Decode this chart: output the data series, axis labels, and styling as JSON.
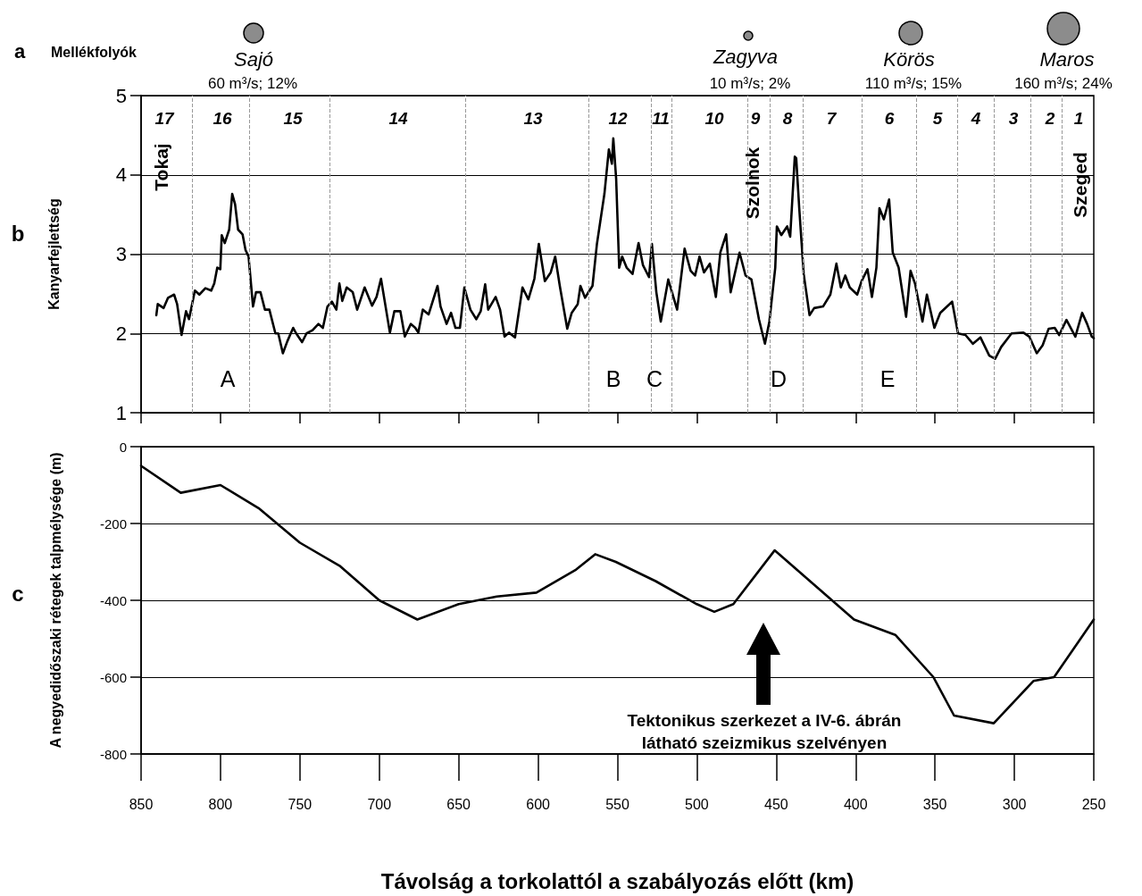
{
  "chart_data": [
    {
      "type": "other",
      "title": "Mellékfolyók",
      "annotations": [
        "a",
        "Sajó",
        "60 m³/s; 12%",
        "Zagyva",
        "10 m³/s; 2%",
        "Körös",
        "110 m³/s; 15%",
        "Maros",
        "160 m³/s; 24%"
      ]
    },
    {
      "type": "line",
      "ylabel": "Kanyarfejlettség",
      "marker": "none",
      "grid": "y",
      "tick_labels": "y",
      "xlim": [
        850,
        250
      ],
      "xticks": [
        850,
        800,
        750,
        700,
        650,
        600,
        550,
        500,
        450,
        400,
        350,
        300,
        250
      ],
      "ylim": [
        1,
        5
      ],
      "yticks": [
        1,
        2,
        3,
        4,
        5
      ],
      "ref_lines": [
        {
          "axis": "x",
          "value": 818,
          "label": null,
          "color": "#999999",
          "line_style": "dashed"
        },
        {
          "axis": "x",
          "value": 782,
          "label": null,
          "color": "#999999",
          "line_style": "dashed"
        },
        {
          "axis": "x",
          "value": 731,
          "label": null,
          "color": "#999999",
          "line_style": "dashed"
        },
        {
          "axis": "x",
          "value": 646,
          "label": null,
          "color": "#999999",
          "line_style": "dashed"
        },
        {
          "axis": "x",
          "value": 568,
          "label": null,
          "color": "#999999",
          "line_style": "dashed"
        },
        {
          "axis": "x",
          "value": 529,
          "label": null,
          "color": "#999999",
          "line_style": "dashed"
        },
        {
          "axis": "x",
          "value": 516,
          "label": null,
          "color": "#999999",
          "line_style": "dashed"
        },
        {
          "axis": "x",
          "value": 468,
          "label": null,
          "color": "#999999",
          "line_style": "dashed"
        },
        {
          "axis": "x",
          "value": 454,
          "label": null,
          "color": "#999999",
          "line_style": "dashed"
        },
        {
          "axis": "x",
          "value": 433,
          "label": null,
          "color": "#999999",
          "line_style": "dashed"
        },
        {
          "axis": "x",
          "value": 396,
          "label": null,
          "color": "#999999",
          "line_style": "dashed"
        },
        {
          "axis": "x",
          "value": 362,
          "label": null,
          "color": "#999999",
          "line_style": "dashed"
        },
        {
          "axis": "x",
          "value": 336,
          "label": null,
          "color": "#999999",
          "line_style": "dashed"
        },
        {
          "axis": "x",
          "value": 313,
          "label": null,
          "color": "#999999",
          "line_style": "dashed"
        },
        {
          "axis": "x",
          "value": 290,
          "label": null,
          "color": "#999999",
          "line_style": "dashed"
        },
        {
          "axis": "x",
          "value": 270,
          "label": null,
          "color": "#999999",
          "line_style": "dashed"
        }
      ],
      "annotations": [
        "b",
        "Tokaj",
        "Szolnok",
        "Szeged",
        "A",
        "B",
        "C",
        "D",
        "E",
        "17",
        "16",
        "15",
        "14",
        "13",
        "12",
        "11",
        "10",
        "9",
        "8",
        "7",
        "6",
        "5",
        "4",
        "3",
        "2",
        "1"
      ],
      "series": [
        {
          "color": "#000000",
          "x": [
            840.4,
            839.5,
            835.8,
            833,
            829.2,
            827.3,
            824.5,
            821.7,
            819.8,
            816.1,
            813.3,
            809.5,
            805.8,
            803.9,
            802,
            800.1,
            799.2,
            797.3,
            794.5,
            792.6,
            790.8,
            788.9,
            786.1,
            784.2,
            782.3,
            779.5,
            777.6,
            774.8,
            772,
            769.2,
            765.4,
            763.6,
            760.7,
            757.9,
            754.2,
            752.3,
            748.6,
            745.8,
            742,
            738.3,
            735.5,
            732.6,
            729.8,
            727,
            725.1,
            723.3,
            720.5,
            716.7,
            713.9,
            709.2,
            704.5,
            701.7,
            698.9,
            693.3,
            690.5,
            686.7,
            683.9,
            680.1,
            677.3,
            675.4,
            672.6,
            668.9,
            663.3,
            661.4,
            657.6,
            654.8,
            652,
            649.2,
            646.4,
            642.6,
            638.9,
            636.1,
            633.3,
            631.4,
            626.7,
            623.9,
            621.1,
            618.3,
            614.5,
            609.8,
            606.1,
            602.3,
            599.5,
            595.7,
            592,
            589.2,
            586.3,
            581.6,
            578.8,
            575,
            573.3,
            570.4,
            565.7,
            562.9,
            558.2,
            555.4,
            553.5,
            552.6,
            550.8,
            548.9,
            547,
            544.2,
            540.5,
            536.7,
            533.9,
            530.1,
            528.3,
            525.5,
            522.7,
            518,
            512.4,
            507.7,
            503.9,
            501.1,
            498.3,
            495.5,
            491.8,
            488,
            485.2,
            481.5,
            478.7,
            473.1,
            469.3,
            465.6,
            460.9,
            457.1,
            454.3,
            450.6,
            449.6,
            446.8,
            443.1,
            441.2,
            438.3,
            437.4,
            435.5,
            432.7,
            429,
            426.1,
            420.5,
            415.9,
            412.1,
            409.3,
            406.5,
            403.7,
            399,
            396.2,
            392.5,
            389.7,
            386.9,
            385,
            382.2,
            378.9,
            376.6,
            372.9,
            368.2,
            365.4,
            362.6,
            357.9,
            355.1,
            350.4,
            346.7,
            339.2,
            335.5,
            330.8,
            326.1,
            321.4,
            315.8,
            312.1,
            308.3,
            301.8,
            294.3,
            290.6,
            285.9,
            282.2,
            278.4,
            274.6,
            271.8,
            267.2,
            261.6,
            257.3,
            254.2,
            251.3,
            250
          ],
          "values": [
            2.23,
            2.37,
            2.32,
            2.45,
            2.49,
            2.37,
            1.98,
            2.28,
            2.18,
            2.54,
            2.49,
            2.57,
            2.54,
            2.63,
            2.83,
            2.81,
            3.24,
            3.14,
            3.31,
            3.76,
            3.63,
            3.31,
            3.25,
            3.05,
            2.97,
            2.34,
            2.52,
            2.52,
            2.3,
            2.3,
            2,
            2,
            1.75,
            1.9,
            2.07,
            2,
            1.89,
            2,
            2.04,
            2.12,
            2.07,
            2.34,
            2.4,
            2.3,
            2.63,
            2.41,
            2.58,
            2.52,
            2.3,
            2.58,
            2.35,
            2.46,
            2.69,
            2.01,
            2.28,
            2.28,
            1.96,
            2.12,
            2.07,
            2.01,
            2.3,
            2.24,
            2.6,
            2.34,
            2.12,
            2.26,
            2.07,
            2.07,
            2.58,
            2.3,
            2.18,
            2.28,
            2.62,
            2.3,
            2.46,
            2.3,
            1.96,
            2.01,
            1.95,
            2.58,
            2.43,
            2.69,
            3.13,
            2.66,
            2.77,
            2.97,
            2.6,
            2.06,
            2.26,
            2.37,
            2.6,
            2.45,
            2.6,
            3.13,
            3.76,
            4.32,
            4.14,
            4.46,
            3.95,
            2.83,
            2.97,
            2.83,
            2.75,
            3.14,
            2.86,
            2.71,
            3.13,
            2.52,
            2.15,
            2.68,
            2.3,
            3.07,
            2.79,
            2.73,
            2.97,
            2.77,
            2.88,
            2.46,
            3.02,
            3.25,
            2.52,
            3.02,
            2.73,
            2.68,
            2.18,
            1.87,
            2.15,
            2.83,
            3.35,
            3.24,
            3.35,
            3.22,
            4.23,
            4.21,
            3.58,
            2.75,
            2.23,
            2.32,
            2.34,
            2.49,
            2.88,
            2.58,
            2.73,
            2.58,
            2.49,
            2.66,
            2.81,
            2.46,
            2.83,
            3.58,
            3.44,
            3.69,
            3.02,
            2.83,
            2.21,
            2.79,
            2.63,
            2.15,
            2.49,
            2.07,
            2.26,
            2.4,
            2,
            1.98,
            1.87,
            1.95,
            1.72,
            1.68,
            1.83,
            2,
            2.01,
            1.96,
            1.75,
            1.85,
            2.06,
            2.07,
            1.98,
            2.17,
            1.96,
            2.26,
            2.12,
            1.96,
            1.94
          ]
        }
      ]
    },
    {
      "type": "line",
      "ylabel": "A negyedidőszaki rétegek talpmélysége (m)",
      "xlabel": "Távolság a torkolattól a szabályozás előtt (km)",
      "marker": "none",
      "grid": "y",
      "xlim": [
        850,
        250
      ],
      "xticks": [
        850,
        800,
        750,
        700,
        650,
        600,
        550,
        500,
        450,
        400,
        350,
        300,
        250
      ],
      "ylim": [
        -800,
        0
      ],
      "yticks": [
        -800,
        -600,
        -400,
        -200,
        0
      ],
      "annotations": [
        "c",
        "Tektonikus szerkezet a IV-6. ábrán\nlátható szeizmikus szelvényen"
      ],
      "series": [
        {
          "color": "#000000",
          "x": [
            850,
            825,
            800,
            776,
            750,
            725,
            700,
            676,
            650,
            626,
            601,
            576,
            564,
            551,
            526,
            500,
            489,
            477,
            451,
            426,
            401,
            375,
            351,
            338,
            313,
            288,
            275,
            250
          ],
          "values": [
            -50,
            -120,
            -100,
            -160,
            -250,
            -310,
            -400,
            -450,
            -410,
            -390,
            -380,
            -320,
            -280,
            -300,
            -350,
            -410,
            -430,
            -410,
            -270,
            -360,
            -450,
            -490,
            -600,
            -700,
            -720,
            -610,
            -600,
            -450
          ]
        }
      ]
    }
  ]
}
